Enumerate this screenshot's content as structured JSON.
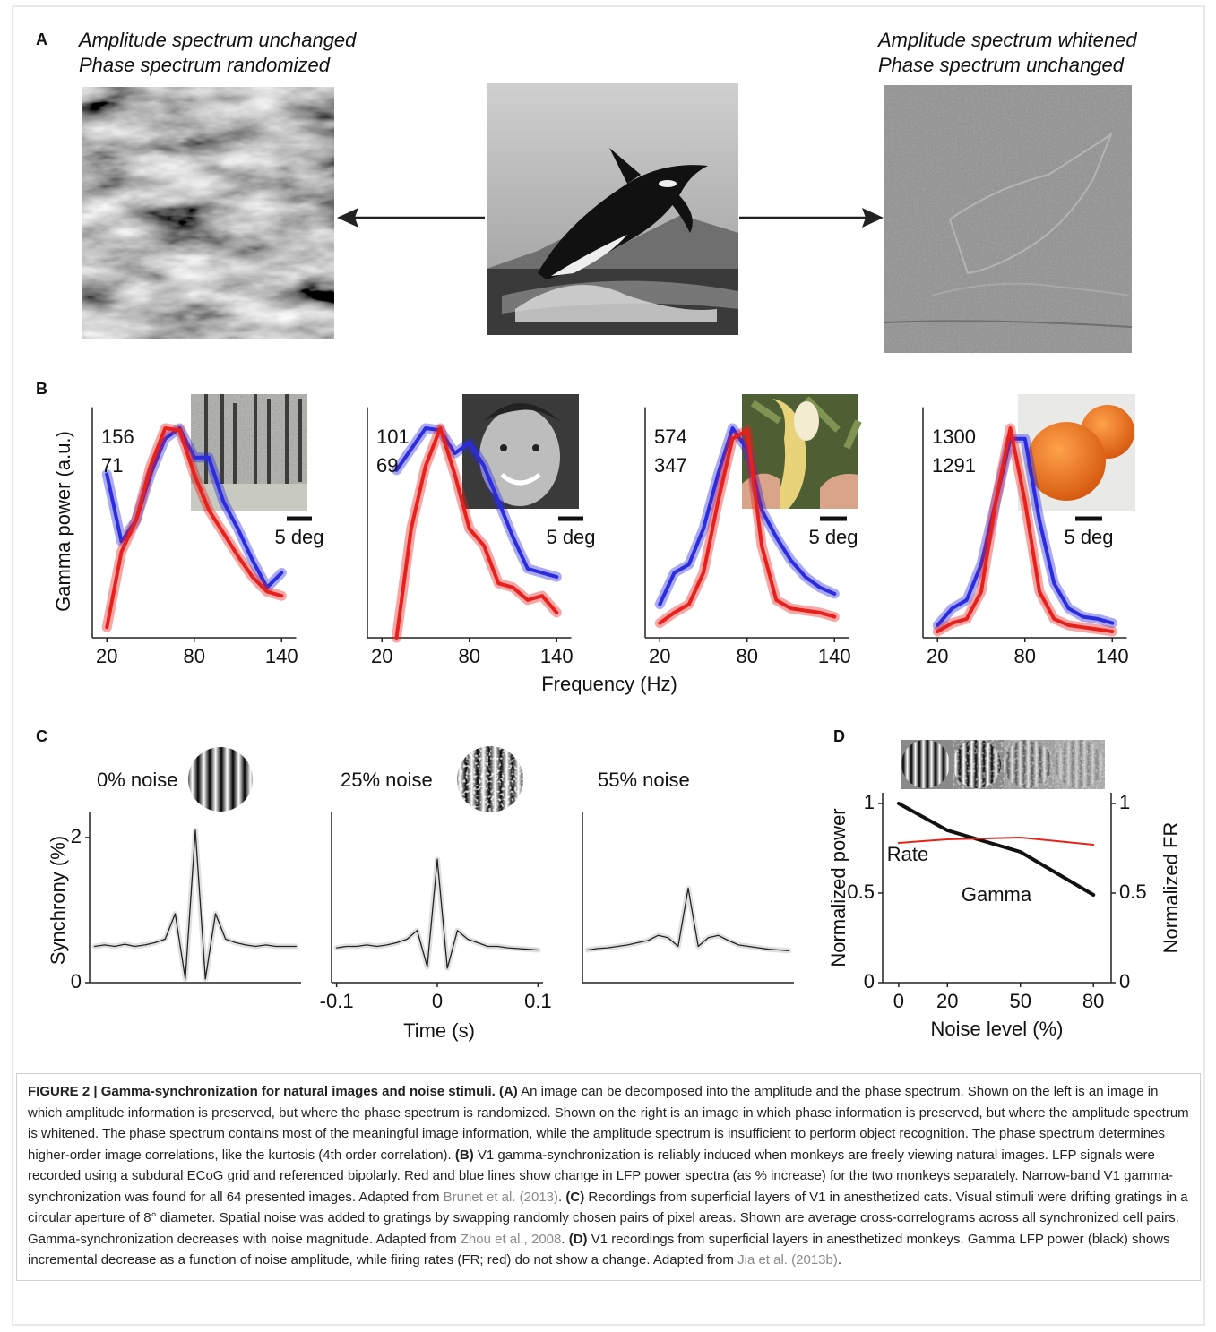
{
  "panels": {
    "a": {
      "label": "A",
      "left_title": [
        "Amplitude spectrum unchanged",
        "Phase spectrum randomized"
      ],
      "right_title": [
        "Amplitude spectrum whitened",
        "Phase spectrum unchanged"
      ]
    },
    "b": {
      "label": "B",
      "y_label": "Gamma power (a.u.)",
      "x_label": "Frequency (Hz)",
      "scale_bar": "5 deg"
    },
    "c": {
      "label": "C",
      "y_label": "Synchrony (%)",
      "x_label": "Time (s)"
    },
    "d": {
      "label": "D"
    }
  },
  "chart_data": [
    {
      "type": "line",
      "x": [
        20,
        30,
        40,
        50,
        60,
        70,
        80,
        90,
        100,
        110,
        120,
        130,
        140
      ],
      "xlim": [
        10,
        150
      ],
      "xticks": [
        20,
        80,
        140
      ],
      "ylim": [
        0,
        1.1
      ],
      "series": [
        {
          "annotation": 156,
          "color": "#2b2be0",
          "values": [
            0.78,
            0.46,
            0.56,
            0.78,
            0.95,
            1.0,
            0.86,
            0.86,
            0.65,
            0.52,
            0.37,
            0.24,
            0.31
          ]
        },
        {
          "annotation": 71,
          "color": "#e8201c",
          "values": [
            0.05,
            0.41,
            0.56,
            0.82,
            1.0,
            0.99,
            0.78,
            0.61,
            0.5,
            0.39,
            0.29,
            0.22,
            0.2
          ]
        }
      ]
    },
    {
      "type": "line",
      "x": [
        20,
        30,
        40,
        50,
        60,
        70,
        80,
        90,
        100,
        110,
        120,
        130,
        140
      ],
      "xlim": [
        10,
        150
      ],
      "xticks": [
        20,
        80,
        140
      ],
      "ylim": [
        0,
        1.1
      ],
      "series": [
        {
          "annotation": 101,
          "color": "#2b2be0",
          "values": [
            null,
            0.8,
            0.9,
            1.0,
            0.99,
            0.88,
            0.93,
            0.82,
            0.65,
            0.48,
            0.33,
            0.31,
            0.29
          ]
        },
        {
          "annotation": 69,
          "color": "#e8201c",
          "values": [
            null,
            0,
            0.52,
            0.82,
            1.0,
            0.78,
            0.52,
            0.44,
            0.26,
            0.24,
            0.18,
            0.2,
            0.12
          ]
        }
      ]
    },
    {
      "type": "line",
      "x": [
        20,
        30,
        40,
        50,
        60,
        70,
        80,
        90,
        100,
        110,
        120,
        130,
        140
      ],
      "xlim": [
        10,
        150
      ],
      "xticks": [
        20,
        80,
        140
      ],
      "ylim": [
        0,
        1.1
      ],
      "series": [
        {
          "annotation": 574,
          "color": "#2b2be0",
          "values": [
            0.16,
            0.31,
            0.35,
            0.52,
            0.78,
            1.0,
            0.9,
            0.61,
            0.48,
            0.37,
            0.29,
            0.24,
            0.21
          ]
        },
        {
          "annotation": 347,
          "color": "#e8201c",
          "values": [
            0.07,
            0.12,
            0.16,
            0.31,
            0.65,
            0.95,
            0.99,
            0.44,
            0.18,
            0.14,
            0.13,
            0.12,
            0.1
          ]
        }
      ]
    },
    {
      "type": "line",
      "x": [
        20,
        30,
        40,
        50,
        60,
        70,
        80,
        90,
        100,
        110,
        120,
        130,
        140
      ],
      "xlim": [
        10,
        150
      ],
      "xticks": [
        20,
        80,
        140
      ],
      "ylim": [
        0,
        1.1
      ],
      "series": [
        {
          "annotation": 1300,
          "color": "#2b2be0",
          "values": [
            0.06,
            0.14,
            0.18,
            0.35,
            0.65,
            0.95,
            0.95,
            0.56,
            0.26,
            0.14,
            0.1,
            0.09,
            0.07
          ]
        },
        {
          "annotation": 1291,
          "color": "#e8201c",
          "values": [
            0.03,
            0.07,
            0.09,
            0.22,
            0.65,
            1.0,
            0.65,
            0.22,
            0.09,
            0.06,
            0.05,
            0.04,
            0.03
          ]
        }
      ]
    },
    {
      "type": "line",
      "title": "0% noise",
      "x": [
        -0.1,
        -0.09,
        -0.08,
        -0.07,
        -0.06,
        -0.05,
        -0.04,
        -0.03,
        -0.02,
        -0.01,
        0,
        0.01,
        0.02,
        0.03,
        0.04,
        0.05,
        0.06,
        0.07,
        0.08,
        0.09,
        0.1
      ],
      "xlim": [
        -0.105,
        0.105
      ],
      "ylim": [
        0,
        2.35
      ],
      "yticks": [
        0,
        2
      ],
      "series": [
        {
          "color": "#222222",
          "values": [
            0.5,
            0.52,
            0.5,
            0.53,
            0.5,
            0.52,
            0.55,
            0.6,
            0.95,
            0.05,
            2.1,
            0.05,
            0.95,
            0.6,
            0.55,
            0.52,
            0.5,
            0.52,
            0.5,
            0.5,
            0.5
          ]
        }
      ]
    },
    {
      "type": "line",
      "title": "25% noise",
      "x": [
        -0.1,
        -0.09,
        -0.08,
        -0.07,
        -0.06,
        -0.05,
        -0.04,
        -0.03,
        -0.02,
        -0.01,
        0,
        0.01,
        0.02,
        0.03,
        0.04,
        0.05,
        0.06,
        0.07,
        0.08,
        0.09,
        0.1
      ],
      "xlim": [
        -0.105,
        0.105
      ],
      "xticks": [
        -0.1,
        0,
        0.1
      ],
      "ylim": [
        0,
        2.35
      ],
      "series": [
        {
          "color": "#222222",
          "values": [
            0.48,
            0.5,
            0.5,
            0.52,
            0.5,
            0.52,
            0.55,
            0.6,
            0.72,
            0.22,
            1.7,
            0.2,
            0.72,
            0.6,
            0.55,
            0.5,
            0.5,
            0.48,
            0.47,
            0.46,
            0.45
          ]
        }
      ]
    },
    {
      "type": "line",
      "title": "55% noise",
      "x": [
        -0.1,
        -0.09,
        -0.08,
        -0.07,
        -0.06,
        -0.05,
        -0.04,
        -0.03,
        -0.02,
        -0.01,
        0,
        0.01,
        0.02,
        0.03,
        0.04,
        0.05,
        0.06,
        0.07,
        0.08,
        0.09,
        0.1
      ],
      "xlim": [
        -0.105,
        0.105
      ],
      "ylim": [
        0,
        2.35
      ],
      "series": [
        {
          "color": "#222222",
          "values": [
            0.45,
            0.47,
            0.48,
            0.5,
            0.52,
            0.55,
            0.58,
            0.65,
            0.62,
            0.5,
            1.3,
            0.5,
            0.62,
            0.65,
            0.58,
            0.52,
            0.5,
            0.48,
            0.46,
            0.45,
            0.44
          ]
        }
      ]
    },
    {
      "type": "line",
      "x": [
        0,
        20,
        50,
        80
      ],
      "xlim": [
        -6.6,
        87.3
      ],
      "xticks": [
        0,
        20,
        50,
        80
      ],
      "ylim": [
        0,
        1.06
      ],
      "yticks": [
        0,
        0.5,
        1
      ],
      "y2lim": [
        0,
        1.06
      ],
      "y2ticks": [
        0,
        0.5,
        1
      ],
      "x_label": "Noise level (%)",
      "y_label": "Normalized power",
      "y2_label": "Normalized FR",
      "series": [
        {
          "name": "Gamma",
          "color": "#111111",
          "values": [
            1.0,
            0.85,
            0.73,
            0.49
          ]
        },
        {
          "name": "Rate",
          "color": "#e3241b",
          "axis": "y2",
          "values": [
            0.78,
            0.8,
            0.81,
            0.77
          ]
        }
      ]
    }
  ],
  "caption": {
    "title": "FIGURE 2 | Gamma-synchronization for natural images and noise stimuli.",
    "parts": [
      {
        "label": "(A)",
        "text": "An image can be decomposed into the amplitude and the phase spectrum. Shown on the left is an image in which amplitude information is preserved, but where the phase spectrum is randomized. Shown on the right is an image in which phase information is preserved, but where the amplitude spectrum is whitened. The phase spectrum contains most of the meaningful image information, while the amplitude spectrum is insufficient to perform object recognition. The phase spectrum determines higher-order image correlations, like the kurtosis (4th order correlation)."
      },
      {
        "label": "(B)",
        "text": "V1 gamma-synchronization is reliably induced when monkeys are freely viewing natural images. LFP signals were recorded using a subdural ECoG grid and referenced bipolarly. Red and blue lines show change in LFP power spectra (as % increase) for the two monkeys separately. Narrow-band V1 gamma-synchronization was found for all 64 presented images. Adapted from",
        "citation": "Brunet et al. (2013)",
        "end": "."
      },
      {
        "label": "(C)",
        "text": "Recordings from superficial layers of V1 in anesthetized cats. Visual stimuli were drifting gratings in a circular aperture of 8° diameter. Spatial noise was added to gratings by swapping randomly chosen pairs of pixel areas. Shown are average cross-correlograms across all synchronized cell pairs. Gamma-synchronization decreases with noise magnitude. Adapted from",
        "citation": "Zhou et al., 2008",
        "end": "."
      },
      {
        "label": "(D)",
        "text": "V1 recordings from superficial layers in anesthetized monkeys. Gamma LFP power (black) shows incremental decrease as a function of noise amplitude, while firing rates (FR; red) do not show a change. Adapted from",
        "citation": "Jia et al. (2013b)",
        "end": "."
      }
    ]
  }
}
